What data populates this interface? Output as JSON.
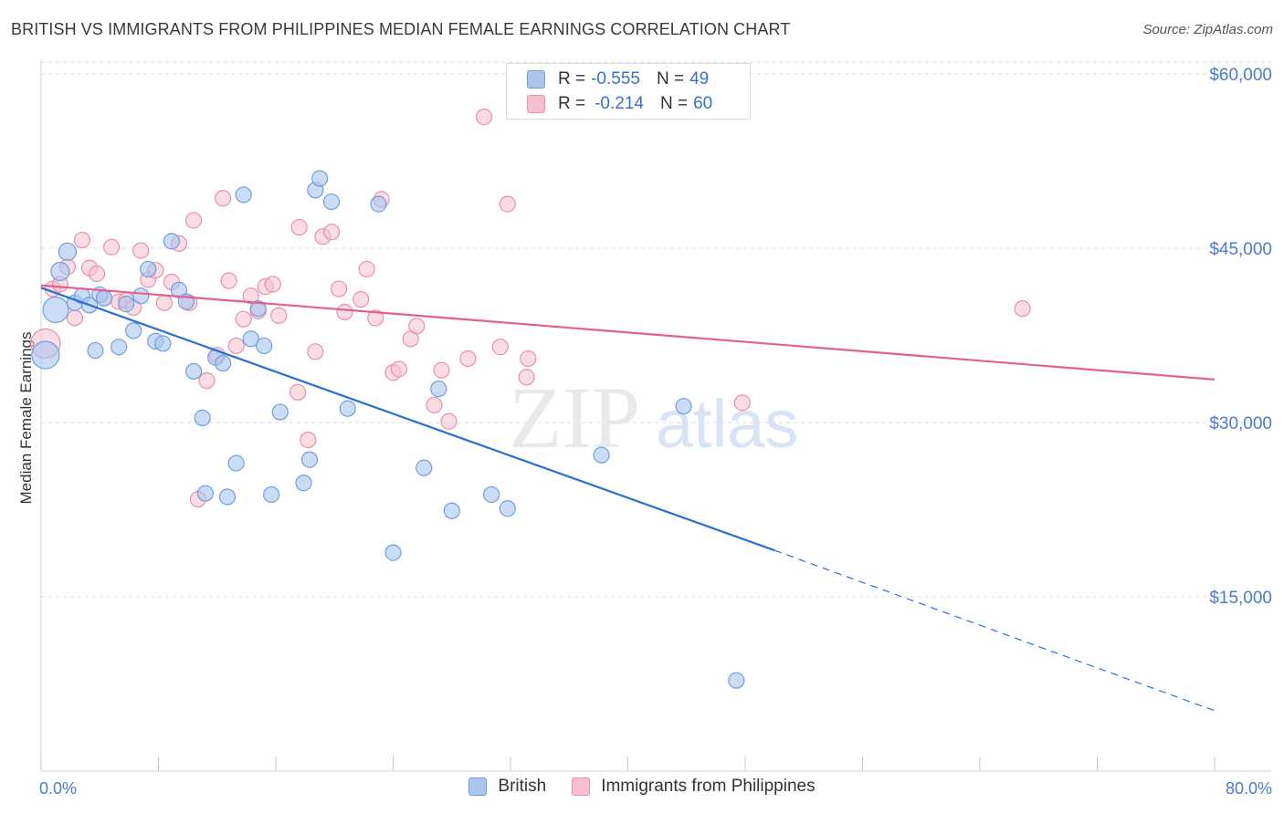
{
  "title": "BRITISH VS IMMIGRANTS FROM PHILIPPINES MEDIAN FEMALE EARNINGS CORRELATION CHART",
  "source": "Source: ZipAtlas.com",
  "watermark": {
    "zip": "ZIP",
    "atlas": "atlas"
  },
  "colors": {
    "british_fill": "#a9c6ee",
    "british_stroke": "#6f9fe0",
    "british_line": "#2a6fd6",
    "phil_fill": "#f6c0d0",
    "phil_stroke": "#ec8fab",
    "phil_line": "#e0628c",
    "grid": "#dedede",
    "tick_text": "#4a7bd0"
  },
  "legend": {
    "rows": [
      {
        "r_label": "R =",
        "r_value": "-0.555",
        "n_label": "N =",
        "n_value": "49"
      },
      {
        "r_label": "R =",
        "r_value": "-0.214",
        "n_label": "N =",
        "n_value": "60"
      }
    ]
  },
  "bottom_legend": [
    "British",
    "Immigrants from Philippines"
  ],
  "chart_data": {
    "type": "scatter",
    "title": "BRITISH VS IMMIGRANTS FROM PHILIPPINES MEDIAN FEMALE EARNINGS CORRELATION CHART",
    "xlabel": "",
    "ylabel": "Median Female Earnings",
    "xlim": [
      0,
      80
    ],
    "ylim": [
      0,
      62000
    ],
    "x_tick_labels": [
      "0.0%",
      "80.0%"
    ],
    "y_ticks": [
      15000,
      30000,
      45000,
      60000
    ],
    "y_tick_labels": [
      "$15,000",
      "$30,000",
      "$45,000",
      "$60,000"
    ],
    "grid": true,
    "legend_position": "top-center",
    "series": [
      {
        "name": "British",
        "points": [
          [
            1.0,
            39700
          ],
          [
            0.3,
            35800
          ],
          [
            1.3,
            43000
          ],
          [
            1.8,
            44700
          ],
          [
            2.3,
            40300
          ],
          [
            2.8,
            40900
          ],
          [
            3.3,
            40100
          ],
          [
            3.7,
            36200
          ],
          [
            4.0,
            41000
          ],
          [
            4.3,
            40700
          ],
          [
            5.3,
            36500
          ],
          [
            5.8,
            40200
          ],
          [
            6.3,
            37900
          ],
          [
            6.8,
            40900
          ],
          [
            7.3,
            43200
          ],
          [
            7.8,
            37000
          ],
          [
            8.3,
            36800
          ],
          [
            8.9,
            45600
          ],
          [
            9.4,
            41400
          ],
          [
            9.9,
            40400
          ],
          [
            10.4,
            34400
          ],
          [
            11.0,
            30400
          ],
          [
            11.2,
            23900
          ],
          [
            11.9,
            35600
          ],
          [
            12.4,
            35100
          ],
          [
            12.7,
            23600
          ],
          [
            13.3,
            26500
          ],
          [
            13.8,
            49600
          ],
          [
            14.3,
            37200
          ],
          [
            14.8,
            39800
          ],
          [
            15.2,
            36600
          ],
          [
            15.7,
            23800
          ],
          [
            16.3,
            30900
          ],
          [
            17.9,
            24800
          ],
          [
            18.3,
            26800
          ],
          [
            18.7,
            50000
          ],
          [
            19.0,
            51000
          ],
          [
            19.8,
            49000
          ],
          [
            20.9,
            31200
          ],
          [
            23.0,
            48800
          ],
          [
            24.0,
            18800
          ],
          [
            26.1,
            26100
          ],
          [
            27.1,
            32900
          ],
          [
            28.0,
            22400
          ],
          [
            30.7,
            23800
          ],
          [
            31.8,
            22600
          ],
          [
            38.2,
            27200
          ],
          [
            43.8,
            31400
          ],
          [
            47.4,
            7800
          ]
        ],
        "trend": {
          "x0": 0.0,
          "y0": 41600,
          "x1": 50.0,
          "y1": 19000,
          "dash_to_x": 80.0,
          "dash_to_y": 5200
        }
      },
      {
        "name": "Immigrants from Philippines",
        "points": [
          [
            0.3,
            36800
          ],
          [
            0.8,
            41500
          ],
          [
            1.3,
            41900
          ],
          [
            1.8,
            43400
          ],
          [
            2.3,
            39000
          ],
          [
            2.8,
            45700
          ],
          [
            3.3,
            43300
          ],
          [
            3.8,
            42800
          ],
          [
            4.3,
            40700
          ],
          [
            4.8,
            45100
          ],
          [
            5.3,
            40400
          ],
          [
            5.8,
            40500
          ],
          [
            6.3,
            39900
          ],
          [
            6.8,
            44800
          ],
          [
            7.3,
            42300
          ],
          [
            7.8,
            43100
          ],
          [
            8.4,
            40300
          ],
          [
            8.9,
            42100
          ],
          [
            9.4,
            45400
          ],
          [
            10.1,
            40300
          ],
          [
            10.4,
            47400
          ],
          [
            10.7,
            23400
          ],
          [
            11.3,
            33600
          ],
          [
            12.0,
            35800
          ],
          [
            12.4,
            49300
          ],
          [
            12.8,
            42200
          ],
          [
            13.3,
            36600
          ],
          [
            13.8,
            38900
          ],
          [
            14.3,
            40900
          ],
          [
            14.8,
            39600
          ],
          [
            15.3,
            41700
          ],
          [
            15.8,
            41900
          ],
          [
            16.2,
            39200
          ],
          [
            17.5,
            32600
          ],
          [
            17.6,
            46800
          ],
          [
            18.2,
            28500
          ],
          [
            18.7,
            36100
          ],
          [
            19.2,
            46000
          ],
          [
            19.8,
            46400
          ],
          [
            20.3,
            41500
          ],
          [
            20.7,
            39500
          ],
          [
            21.8,
            40600
          ],
          [
            22.2,
            43200
          ],
          [
            22.8,
            39000
          ],
          [
            23.2,
            49200
          ],
          [
            24.0,
            34300
          ],
          [
            24.4,
            34600
          ],
          [
            25.2,
            37200
          ],
          [
            25.6,
            38300
          ],
          [
            26.8,
            31500
          ],
          [
            27.3,
            34500
          ],
          [
            27.8,
            30100
          ],
          [
            29.1,
            35500
          ],
          [
            30.2,
            56300
          ],
          [
            31.3,
            36500
          ],
          [
            31.8,
            48800
          ],
          [
            33.1,
            33900
          ],
          [
            33.2,
            35500
          ],
          [
            47.8,
            31700
          ],
          [
            66.9,
            39800
          ]
        ],
        "trend": {
          "x0": 0.0,
          "y0": 41800,
          "x1": 80.0,
          "y1": 33700
        }
      }
    ]
  }
}
